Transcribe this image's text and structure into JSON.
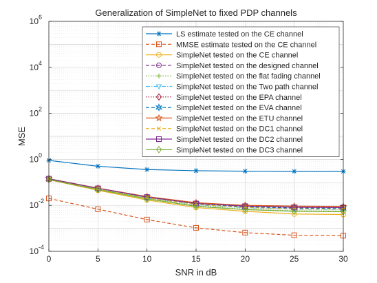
{
  "chart_data": {
    "type": "line",
    "title": "Generalization of SimpleNet to fixed PDP channels",
    "xlabel": "SNR in dB",
    "ylabel": "MSE",
    "x": [
      0,
      5,
      10,
      15,
      20,
      25,
      30
    ],
    "xlim": [
      0,
      30
    ],
    "ylim": [
      0.0001,
      1000000
    ],
    "yscale": "log",
    "xticks": [
      "0",
      "5",
      "10",
      "15",
      "20",
      "25",
      "30"
    ],
    "yticks": [
      {
        "base": "10",
        "exp": "-4"
      },
      {
        "base": "10",
        "exp": "-2"
      },
      {
        "base": "10",
        "exp": "0"
      },
      {
        "base": "10",
        "exp": "2"
      },
      {
        "base": "10",
        "exp": "4"
      },
      {
        "base": "10",
        "exp": "6"
      }
    ],
    "grid": true,
    "legend_position": "top-right",
    "series": [
      {
        "name": "LS estimate tested on the CE channel",
        "color": "#0072BD",
        "dash": "solid",
        "marker": "asterisk",
        "values": [
          0.9,
          0.5,
          0.36,
          0.32,
          0.305,
          0.3,
          0.3
        ]
      },
      {
        "name": "MMSE estimate tested on the CE channel",
        "color": "#D95319",
        "dash": "dashed",
        "marker": "square",
        "values": [
          0.02,
          0.0068,
          0.0024,
          0.00105,
          0.00065,
          0.0005,
          0.00048
        ]
      },
      {
        "name": "SimpleNet tested on the CE channel",
        "color": "#EDB120",
        "dash": "solid",
        "marker": "circle",
        "values": [
          0.13,
          0.045,
          0.017,
          0.008,
          0.0055,
          0.0042,
          0.004
        ]
      },
      {
        "name": "SimpleNet tested on the designed channel",
        "color": "#7E2F8E",
        "dash": "dashed",
        "marker": "circle",
        "values": [
          0.14,
          0.054,
          0.022,
          0.012,
          0.009,
          0.008,
          0.008
        ]
      },
      {
        "name": "SimpleNet tested on the flat fading channel",
        "color": "#77AC30",
        "dash": "dotted",
        "marker": "plus",
        "values": [
          0.135,
          0.05,
          0.02,
          0.0095,
          0.0068,
          0.0058,
          0.0056
        ]
      },
      {
        "name": "SimpleNet tested on the Two path channel",
        "color": "#4DBEEE",
        "dash": "dashdot",
        "marker": "triangle-down",
        "values": [
          0.137,
          0.051,
          0.021,
          0.0105,
          0.0078,
          0.0068,
          0.0066
        ]
      },
      {
        "name": "SimpleNet tested on the EPA channel",
        "color": "#A2142F",
        "dash": "dotted",
        "marker": "diamond",
        "values": [
          0.142,
          0.055,
          0.023,
          0.0125,
          0.0095,
          0.0085,
          0.0085
        ]
      },
      {
        "name": "SimpleNet tested on the EVA channel",
        "color": "#0072BD",
        "dash": "dashed",
        "marker": "hexagram",
        "values": [
          0.14,
          0.053,
          0.022,
          0.0115,
          0.0085,
          0.0075,
          0.0073
        ]
      },
      {
        "name": "SimpleNet tested on the ETU channel",
        "color": "#D95319",
        "dash": "solid",
        "marker": "pentagram",
        "values": [
          0.145,
          0.056,
          0.024,
          0.013,
          0.01,
          0.0092,
          0.009
        ]
      },
      {
        "name": "SimpleNet tested on the DC1 channel",
        "color": "#EDB120",
        "dash": "dashed",
        "marker": "x",
        "values": [
          0.138,
          0.052,
          0.021,
          0.011,
          0.008,
          0.007,
          0.0068
        ]
      },
      {
        "name": "SimpleNet tested on the DC2 channel",
        "color": "#7E2F8E",
        "dash": "solid",
        "marker": "square",
        "values": [
          0.143,
          0.055,
          0.023,
          0.012,
          0.0092,
          0.0082,
          0.008
        ]
      },
      {
        "name": "SimpleNet tested on the DC3 channel",
        "color": "#77AC30",
        "dash": "solid",
        "marker": "diamond",
        "values": [
          0.132,
          0.048,
          0.019,
          0.009,
          0.0065,
          0.0055,
          0.0053
        ]
      }
    ]
  }
}
